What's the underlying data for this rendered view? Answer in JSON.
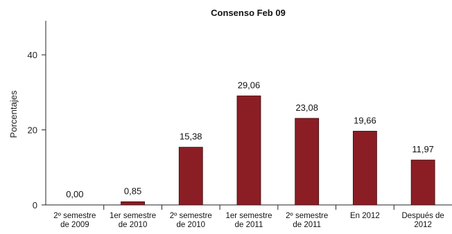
{
  "chart_data": {
    "type": "bar",
    "title": "Consenso Feb 09",
    "ylabel": "Porcentajes",
    "xlabel": "",
    "ylim": [
      0,
      50
    ],
    "yticks": [
      0,
      20,
      40
    ],
    "grid": false,
    "legend": "none",
    "bar_color": "#8b1e24",
    "categories": [
      [
        "2º semestre",
        "de 2009"
      ],
      [
        "1er semestre",
        "de 2010"
      ],
      [
        "2º semestre",
        "de 2010"
      ],
      [
        "1er semestre",
        "de 2011"
      ],
      [
        "2º semestre",
        "de 2011"
      ],
      [
        "En 2012"
      ],
      [
        "Después de",
        "2012"
      ]
    ],
    "values": [
      0.0,
      0.85,
      15.38,
      29.06,
      23.08,
      19.66,
      11.97
    ],
    "value_labels": [
      "0,00",
      "0,85",
      "15,38",
      "29,06",
      "23,08",
      "19,66",
      "11,97"
    ]
  }
}
